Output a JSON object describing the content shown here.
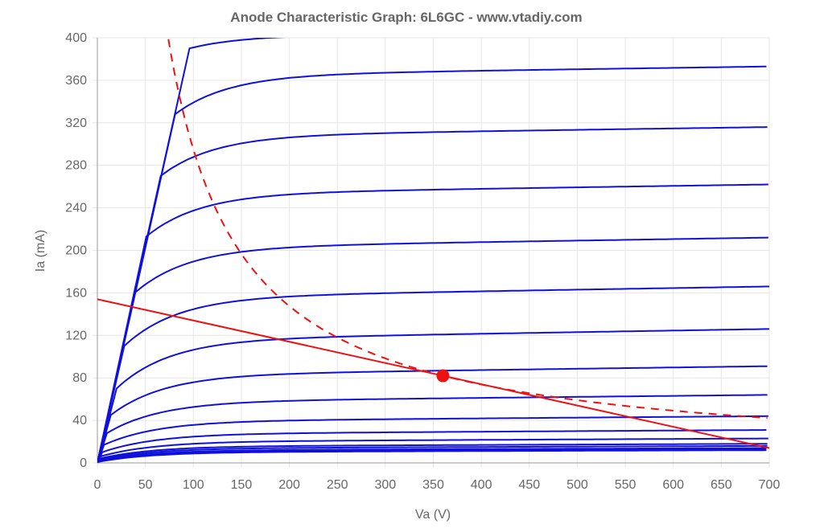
{
  "chart_data": {
    "type": "line",
    "title": "Anode Characteristic Graph: 6L6GC - www.vtadiy.com",
    "xlabel": "Va (V)",
    "ylabel": "Ia (mA)",
    "xlim": [
      0,
      700
    ],
    "ylim": [
      0,
      400
    ],
    "x_ticks": [
      0,
      50,
      100,
      150,
      200,
      250,
      300,
      350,
      400,
      450,
      500,
      550,
      600,
      650,
      700
    ],
    "y_ticks": [
      0,
      40,
      80,
      120,
      160,
      200,
      240,
      280,
      320,
      360,
      400
    ],
    "grid": true,
    "legend": "none",
    "colors": {
      "curves": "#1010dd",
      "load_line": "#ee1111",
      "grid": "#e6e6e6",
      "axis": "#999999"
    },
    "curves": [
      {
        "knee": [
          96,
          390
        ],
        "end": [
          700,
          405
        ]
      },
      {
        "knee": [
          81,
          328
        ],
        "end": [
          700,
          373
        ]
      },
      {
        "knee": [
          66,
          270
        ],
        "end": [
          700,
          316
        ]
      },
      {
        "knee": [
          51,
          213
        ],
        "end": [
          700,
          262
        ]
      },
      {
        "knee": [
          39,
          160
        ],
        "end": [
          700,
          212
        ]
      },
      {
        "knee": [
          28,
          110
        ],
        "end": [
          700,
          166
        ]
      },
      {
        "knee": [
          20,
          70
        ],
        "end": [
          700,
          126
        ]
      },
      {
        "knee": [
          14,
          45
        ],
        "end": [
          700,
          91
        ]
      },
      {
        "knee": [
          10,
          28
        ],
        "end": [
          700,
          64
        ]
      },
      {
        "knee": [
          7,
          17
        ],
        "end": [
          700,
          44
        ]
      },
      {
        "knee": [
          5,
          10
        ],
        "end": [
          700,
          31
        ]
      },
      {
        "knee": [
          3,
          6
        ],
        "end": [
          700,
          23
        ]
      },
      {
        "knee": [
          2,
          4
        ],
        "end": [
          700,
          18
        ]
      },
      {
        "knee": [
          2,
          3
        ],
        "end": [
          700,
          16
        ]
      },
      {
        "knee": [
          1,
          2
        ],
        "end": [
          700,
          14
        ]
      },
      {
        "knee": [
          1,
          1
        ],
        "end": [
          700,
          13
        ]
      },
      {
        "knee": [
          1,
          1
        ],
        "end": [
          700,
          12
        ]
      }
    ],
    "load_line": {
      "points": [
        [
          0,
          154
        ],
        [
          700,
          14
        ]
      ]
    },
    "power_curve": {
      "power_mW": 29500,
      "x_start": 74,
      "x_end": 700
    },
    "operating_point": {
      "x": 360,
      "y": 82
    }
  }
}
